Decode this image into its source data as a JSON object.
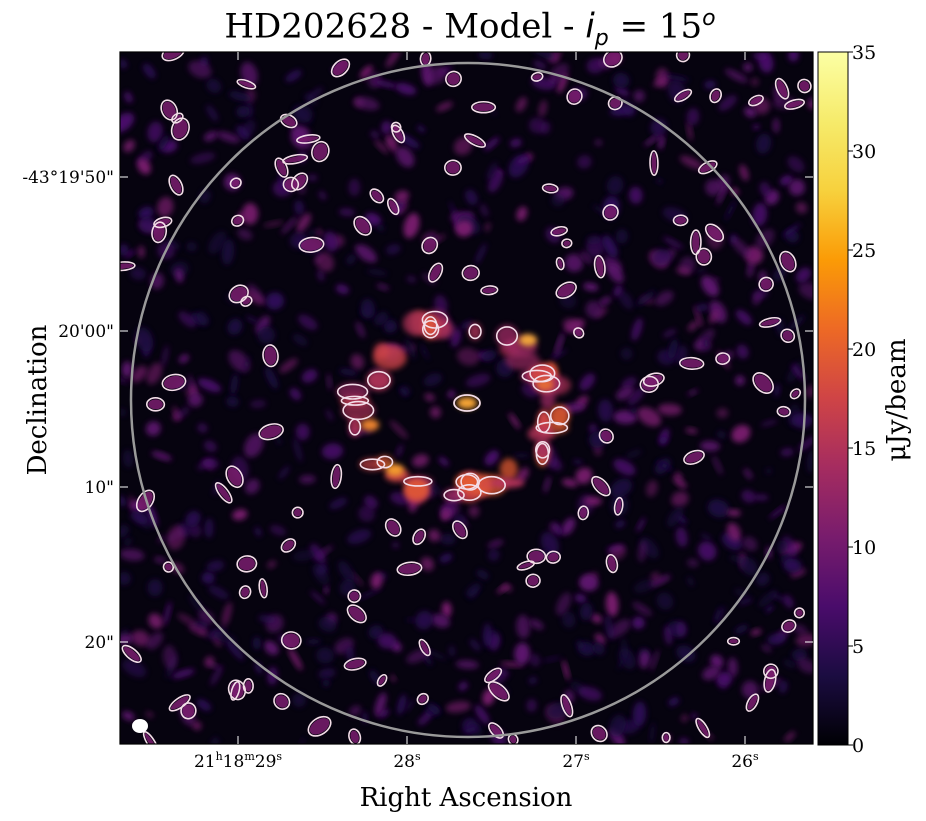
{
  "title": {
    "prefix": "HD202628 - Model - ",
    "param": "i",
    "param_sub": "p",
    "equals": " = 15",
    "exponent": "o"
  },
  "chart_data": {
    "type": "heatmap",
    "title": "HD202628 - Model - i_p = 15^o",
    "xlabel": "Right Ascension",
    "ylabel": "Declination",
    "x_ticks": [
      {
        "label": "21h18m29s",
        "parts": [
          "21",
          "h",
          "18",
          "m",
          "29",
          "s"
        ]
      },
      {
        "label": "28s",
        "parts": [
          "28",
          "s"
        ]
      },
      {
        "label": "27s",
        "parts": [
          "27",
          "s"
        ]
      },
      {
        "label": "26s",
        "parts": [
          "26",
          "s"
        ]
      }
    ],
    "y_ticks": [
      "-43°19'50\"",
      "20'00\"",
      "10\"",
      "20\""
    ],
    "colorbar": {
      "label": "μJy/beam",
      "min": 0,
      "max": 35,
      "ticks": [
        0,
        5,
        10,
        15,
        20,
        25,
        30,
        35
      ],
      "colormap": "inferno"
    },
    "image_background": "#06030f",
    "primary_beam_circle_color": "#9a9a9a",
    "contour_color": "#f3dde8",
    "beam_marker_color": "#ffffff",
    "features": {
      "ring": "elliptical ring of emission around the star, peak intensity about 18 μJy/beam",
      "central_source": "compact central source, about 18 μJy/beam"
    }
  }
}
